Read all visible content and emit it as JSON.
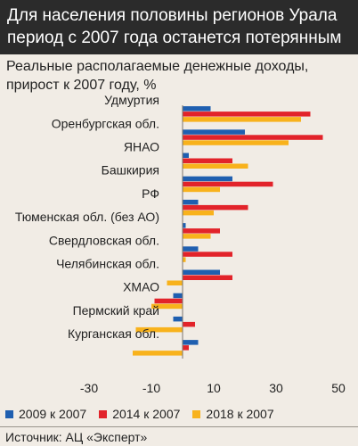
{
  "header": {
    "title_line1": "Для населения половины регионов Урала",
    "title_line2": "период с 2007 года останется потерянным"
  },
  "subtitle": {
    "line1": "Реальные располагаемые денежные доходы,",
    "line2": "прирост к 2007 году, %"
  },
  "colors": {
    "series_2009": "#1f5fb0",
    "series_2014": "#e2232a",
    "series_2018": "#f8b21c",
    "background": "#f1ece5",
    "header_bg": "#2b2b2b"
  },
  "chart_data": {
    "type": "bar",
    "orientation": "horizontal",
    "categories": [
      "Удмуртия",
      "Оренбургская обл.",
      "ЯНАО",
      "Башкирия",
      "РФ",
      "Тюменская обл. (без АО)",
      "Свердловская обл.",
      "Челябинская обл.",
      "ХМАО",
      "Пермский край",
      "Курганская обл."
    ],
    "series": [
      {
        "name": "2009 к 2007",
        "values": [
          9,
          20,
          2,
          16,
          5,
          1,
          5,
          12,
          -3,
          -3,
          5
        ]
      },
      {
        "name": "2014 к 2007",
        "values": [
          41,
          45,
          16,
          29,
          21,
          12,
          16,
          16,
          -9,
          4,
          2
        ]
      },
      {
        "name": "2018 к 2007",
        "values": [
          38,
          34,
          21,
          12,
          10,
          9,
          1,
          -5,
          -10,
          -15,
          -16
        ]
      }
    ],
    "xlim": [
      -30,
      50
    ],
    "xticks": [
      "-30",
      "-10",
      "10",
      "30",
      "50"
    ],
    "legend_position": "bottom",
    "grid": false
  },
  "legend": {
    "items": [
      "2009 к 2007",
      "2014 к 2007",
      "2018 к 2007"
    ]
  },
  "footer": {
    "source": "Источник: АЦ «Эксперт»"
  }
}
